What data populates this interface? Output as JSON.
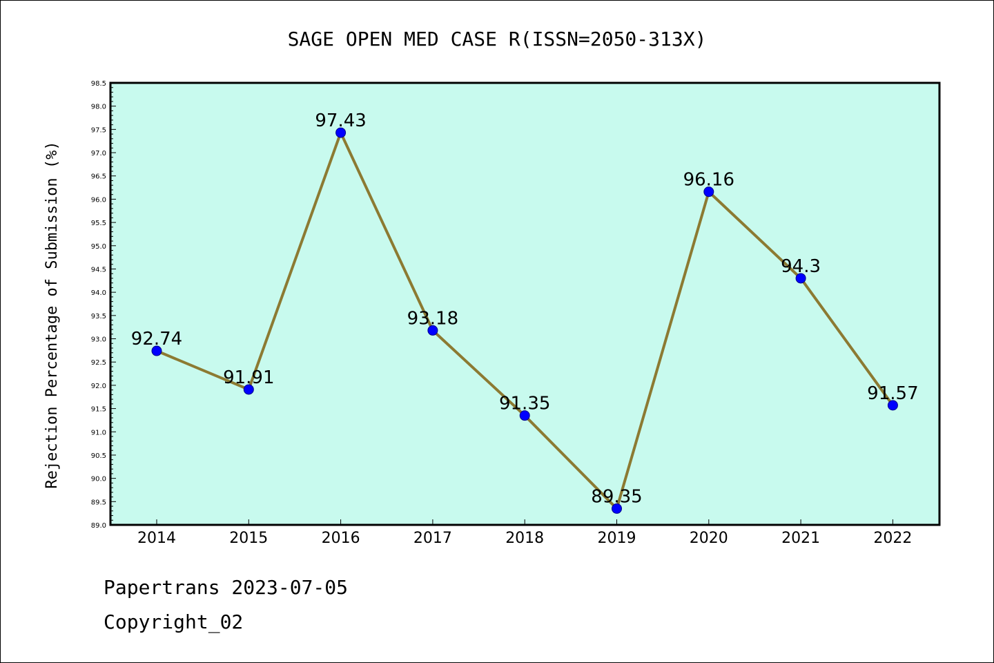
{
  "chart_data": {
    "type": "line",
    "title": "SAGE OPEN MED CASE R(ISSN=2050-313X)",
    "xlabel": "",
    "ylabel": "Rejection Percentage of Submission (%)",
    "categories": [
      "2014",
      "2015",
      "2016",
      "2017",
      "2018",
      "2019",
      "2020",
      "2021",
      "2022"
    ],
    "series": [
      {
        "values": [
          92.74,
          91.91,
          97.43,
          93.18,
          91.35,
          89.35,
          96.16,
          94.3,
          91.57
        ]
      }
    ],
    "data_labels": [
      "92.74",
      "91.91",
      "97.43",
      "93.18",
      "91.35",
      "89.35",
      "96.16",
      "94.3",
      "91.57"
    ],
    "ylim": [
      89.0,
      98.5
    ],
    "yticks": [
      "89.0",
      "89.5",
      "90.0",
      "90.5",
      "91.0",
      "91.5",
      "92.0",
      "92.5",
      "93.0",
      "93.5",
      "94.0",
      "94.5",
      "95.0",
      "95.5",
      "96.0",
      "96.5",
      "97.0",
      "97.5",
      "98.0",
      "98.5"
    ],
    "grid": false,
    "colors": {
      "plot_background": "#c8faee",
      "line": "#8c7a32",
      "marker": "#0000ff"
    }
  },
  "footer": {
    "line1": "Papertrans 2023-07-05",
    "line2": "Copyright_02"
  }
}
